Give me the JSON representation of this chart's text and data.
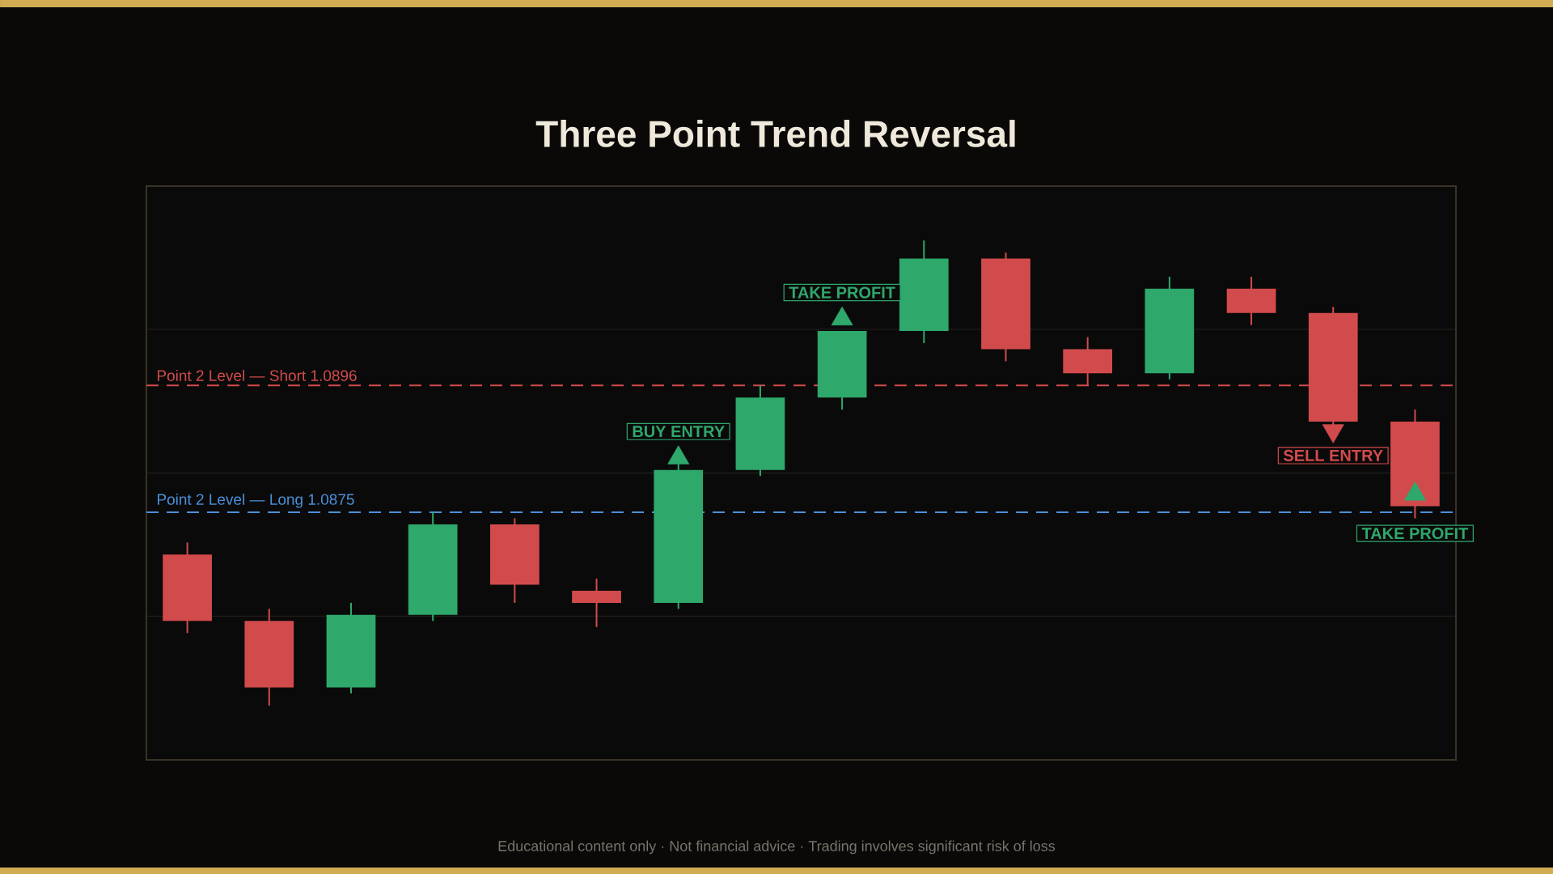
{
  "chart_data": {
    "type": "candlestick",
    "title": "Three Point Trend Reversal",
    "categories": [
      null,
      null,
      null,
      null,
      null,
      null,
      null,
      null,
      null,
      null,
      null,
      null,
      null,
      null,
      null,
      null
    ],
    "ohlc": [
      [
        1.0868,
        1.087,
        1.0855,
        1.0857
      ],
      [
        1.0857,
        1.0859,
        1.0843,
        1.0846
      ],
      [
        1.0846,
        1.086,
        1.0845,
        1.0858
      ],
      [
        1.0858,
        1.0875,
        1.0857,
        1.0873
      ],
      [
        1.0873,
        1.0874,
        1.086,
        1.0863
      ],
      [
        1.0862,
        1.0864,
        1.0856,
        1.086
      ],
      [
        1.086,
        1.0883,
        1.0859,
        1.0882
      ],
      [
        1.0882,
        1.0896,
        1.0881,
        1.0894
      ],
      [
        1.0894,
        1.0905,
        1.0892,
        1.0905
      ],
      [
        1.0905,
        1.092,
        1.0903,
        1.0917
      ],
      [
        1.0917,
        1.0918,
        1.09,
        1.0902
      ],
      [
        1.0902,
        1.0904,
        1.0896,
        1.0898
      ],
      [
        1.0898,
        1.0914,
        1.0897,
        1.0912
      ],
      [
        1.0912,
        1.0914,
        1.0906,
        1.0908
      ],
      [
        1.0908,
        1.0909,
        1.0889,
        1.089
      ],
      [
        1.089,
        1.0892,
        1.0874,
        1.0876
      ]
    ],
    "colors": [
      "#d24b4c",
      "#d24b4c",
      "#2ea86b",
      "#2ea86b",
      "#d24b4c",
      "#d24b4c",
      "#2ea86b",
      "#2ea86b",
      "#2ea86b",
      "#2ea86b",
      "#d24b4c",
      "#d24b4c",
      "#2ea86b",
      "#d24b4c",
      "#d24b4c",
      "#d24b4c"
    ],
    "series": [
      {
        "type": "scatter",
        "color": "#2ea86b",
        "marker": "triangle",
        "values": [
          null,
          null,
          null,
          null,
          null,
          null,
          1.0884,
          null,
          1.0907,
          null,
          null,
          null,
          null,
          null,
          null,
          1.0878
        ],
        "value_labels": [
          null,
          null,
          null,
          null,
          null,
          null,
          "BUY ENTRY",
          null,
          "TAKE PROFIT",
          null,
          null,
          null,
          null,
          null,
          null,
          "TAKE PROFIT"
        ]
      },
      {
        "type": "scatter",
        "color": "#d24b4c",
        "marker": "triangle",
        "values": [
          null,
          null,
          null,
          null,
          null,
          null,
          null,
          null,
          null,
          null,
          null,
          null,
          null,
          null,
          1.08885,
          null
        ],
        "value_labels": [
          null,
          null,
          null,
          null,
          null,
          null,
          null,
          null,
          null,
          null,
          null,
          null,
          null,
          null,
          "SELL ENTRY",
          null
        ]
      }
    ],
    "ref_lines": [
      {
        "axis": "y",
        "value": 1.0896,
        "label": "Point 2 Level — Short 1.0896",
        "color": "#d24b4c",
        "line_style": "dashed"
      },
      {
        "axis": "y",
        "value": 1.0875,
        "label": "Point 2 Level — Long 1.0875",
        "color": "#4a90d9",
        "line_style": "dashed"
      }
    ],
    "ylim": [
      1.0834,
      1.0929
    ],
    "yticks": [
      {
        "value": 1.08578,
        "label": null
      },
      {
        "value": 1.08815,
        "label": null
      },
      {
        "value": 1.09053,
        "label": null
      }
    ],
    "grid": "y",
    "annotations": [
      "Educational content only · Not financial advice · Trading involves significant risk of loss"
    ]
  }
}
